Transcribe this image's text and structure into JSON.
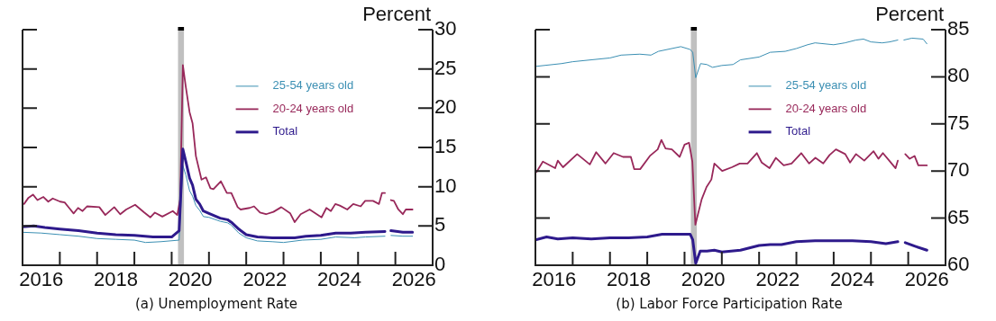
{
  "chart_data": [
    {
      "type": "line",
      "title": "(a) Unemployment Rate",
      "ylabel": "Percent",
      "xlim": [
        2016,
        2027
      ],
      "ylim": [
        0,
        30
      ],
      "yticks": [
        0,
        5,
        10,
        15,
        20,
        25,
        30
      ],
      "xticks": [
        {
          "value": 2016.5,
          "label": "2016"
        },
        {
          "value": 2017,
          "label": null
        },
        {
          "value": 2018,
          "label": null
        },
        {
          "value": 2018.5,
          "label": "2018"
        },
        {
          "value": 2019,
          "label": null
        },
        {
          "value": 2020,
          "label": null
        },
        {
          "value": 2020.5,
          "label": "2020"
        },
        {
          "value": 2021,
          "label": null
        },
        {
          "value": 2022,
          "label": null
        },
        {
          "value": 2022.5,
          "label": "2022"
        },
        {
          "value": 2023,
          "label": null
        },
        {
          "value": 2024,
          "label": null
        },
        {
          "value": 2024.5,
          "label": "2024"
        },
        {
          "value": 2025,
          "label": null
        },
        {
          "value": 2026,
          "label": null
        },
        {
          "value": 2026.5,
          "label": "2026"
        }
      ],
      "bands": [
        {
          "axis": "x",
          "from": 2020.17,
          "to": 2020.33,
          "color": "#c0c0c0"
        }
      ],
      "legend": "top right",
      "grid": false,
      "marker": "none",
      "line_style": "solid",
      "series": [
        {
          "name": "25-54 years old",
          "color": "#3b8fb3",
          "x": [
            2016.0,
            2016.5,
            2017.0,
            2017.5,
            2018.0,
            2018.5,
            2019.0,
            2019.3,
            2019.7,
            2020.2,
            2020.3,
            2020.38,
            2020.48,
            2020.56,
            2020.65,
            2020.75,
            2020.85,
            2021.0,
            2021.3,
            2021.5,
            2021.6,
            2021.8,
            2022.0,
            2022.3,
            2022.7,
            2023.0,
            2023.5,
            2024.0,
            2024.4,
            2024.9,
            2025.2,
            2025.72,
            2025.8,
            2025.88,
            2026.2,
            2026.46
          ],
          "values": [
            4.2,
            4.1,
            3.9,
            3.7,
            3.4,
            3.3,
            3.2,
            2.9,
            3.0,
            3.2,
            12.7,
            11.5,
            9.5,
            8.8,
            7.6,
            7.0,
            6.2,
            6.1,
            5.6,
            5.4,
            5.1,
            4.1,
            3.5,
            3.1,
            3.0,
            2.9,
            3.2,
            3.3,
            3.6,
            3.5,
            3.6,
            3.7,
            null,
            3.8,
            3.7,
            3.7
          ]
        },
        {
          "name": "20-24 years old",
          "color": "#98285a",
          "x": [
            2016.04,
            2016.16,
            2016.28,
            2016.4,
            2016.56,
            2016.69,
            2016.81,
            2017.01,
            2017.13,
            2017.25,
            2017.37,
            2017.49,
            2017.61,
            2017.73,
            2018.06,
            2018.22,
            2018.46,
            2018.62,
            2018.78,
            2019.02,
            2019.27,
            2019.43,
            2019.55,
            2019.75,
            2020.03,
            2020.15,
            2020.23,
            2020.3,
            2020.38,
            2020.48,
            2020.56,
            2020.65,
            2020.8,
            2020.92,
            2021.04,
            2021.12,
            2021.32,
            2021.48,
            2021.6,
            2021.77,
            2021.85,
            2022.09,
            2022.21,
            2022.37,
            2022.53,
            2022.73,
            2022.94,
            2023.18,
            2023.3,
            2023.46,
            2023.7,
            2024.02,
            2024.15,
            2024.27,
            2024.39,
            2024.51,
            2024.71,
            2024.87,
            2025.07,
            2025.19,
            2025.4,
            2025.56,
            2025.64,
            2025.72,
            2025.8,
            2025.88,
            2025.96,
            2026.08,
            2026.2,
            2026.28,
            2026.46
          ],
          "values": [
            7.8,
            8.6,
            9.0,
            8.3,
            8.7,
            8.1,
            8.5,
            8.1,
            8.0,
            7.3,
            6.6,
            7.3,
            6.9,
            7.5,
            7.4,
            6.4,
            7.4,
            6.5,
            7.1,
            7.7,
            6.7,
            6.1,
            6.7,
            6.2,
            6.9,
            6.4,
            8.4,
            25.5,
            22.7,
            19.5,
            18.1,
            13.9,
            10.9,
            11.2,
            9.8,
            9.7,
            10.7,
            9.2,
            9.2,
            7.4,
            7.1,
            7.3,
            7.5,
            6.7,
            6.5,
            6.8,
            7.4,
            6.6,
            5.5,
            6.5,
            7.1,
            6.1,
            7.3,
            6.9,
            7.8,
            7.6,
            7.1,
            7.8,
            7.5,
            8.2,
            8.2,
            7.8,
            9.2,
            9.2,
            null,
            8.3,
            8.2,
            7.1,
            6.5,
            7.1,
            7.1
          ]
        },
        {
          "name": "Total",
          "color": "#2e1a8c",
          "x": [
            2016.0,
            2016.3,
            2016.6,
            2017.0,
            2017.5,
            2018.0,
            2018.5,
            2019.0,
            2019.5,
            2020.0,
            2020.2,
            2020.3,
            2020.38,
            2020.48,
            2020.56,
            2020.65,
            2020.75,
            2020.85,
            2021.0,
            2021.3,
            2021.5,
            2021.62,
            2021.8,
            2022.0,
            2022.3,
            2022.7,
            2023.0,
            2023.3,
            2023.6,
            2024.0,
            2024.4,
            2024.8,
            2025.2,
            2025.72,
            2025.8,
            2025.88,
            2026.2,
            2026.46
          ],
          "values": [
            4.9,
            5.0,
            4.8,
            4.6,
            4.4,
            4.1,
            3.9,
            3.8,
            3.6,
            3.6,
            4.4,
            14.8,
            13.2,
            11.1,
            10.2,
            8.4,
            7.8,
            6.9,
            6.6,
            6.0,
            5.8,
            5.4,
            4.6,
            3.9,
            3.6,
            3.5,
            3.5,
            3.5,
            3.7,
            3.8,
            4.1,
            4.1,
            4.2,
            4.3,
            null,
            4.4,
            4.2,
            4.2
          ]
        }
      ]
    },
    {
      "type": "line",
      "title": "(b) Labor Force Participation Rate",
      "ylabel": "Percent",
      "xlim": [
        2016,
        2027
      ],
      "ylim": [
        60,
        85
      ],
      "yticks": [
        60,
        65,
        70,
        75,
        80,
        85
      ],
      "xticks": [
        {
          "value": 2016.5,
          "label": "2016"
        },
        {
          "value": 2017,
          "label": null
        },
        {
          "value": 2018,
          "label": null
        },
        {
          "value": 2018.5,
          "label": "2018"
        },
        {
          "value": 2019,
          "label": null
        },
        {
          "value": 2020,
          "label": null
        },
        {
          "value": 2020.5,
          "label": "2020"
        },
        {
          "value": 2021,
          "label": null
        },
        {
          "value": 2022,
          "label": null
        },
        {
          "value": 2022.5,
          "label": "2022"
        },
        {
          "value": 2023,
          "label": null
        },
        {
          "value": 2024,
          "label": null
        },
        {
          "value": 2024.5,
          "label": "2024"
        },
        {
          "value": 2025,
          "label": null
        },
        {
          "value": 2026,
          "label": null
        },
        {
          "value": 2026.5,
          "label": "2026"
        }
      ],
      "bands": [
        {
          "axis": "x",
          "from": 2020.17,
          "to": 2020.33,
          "color": "#c0c0c0"
        }
      ],
      "legend": "top right",
      "grid": false,
      "marker": "none",
      "line_style": "solid",
      "series": [
        {
          "name": "25-54 years old",
          "color": "#3b8fb3",
          "x": [
            2016.0,
            2016.7,
            2017.0,
            2017.5,
            2018.0,
            2018.3,
            2018.8,
            2019.1,
            2019.3,
            2019.9,
            2020.15,
            2020.22,
            2020.3,
            2020.43,
            2020.6,
            2020.75,
            2021.0,
            2021.3,
            2021.5,
            2022.0,
            2022.3,
            2022.7,
            2023.0,
            2023.3,
            2023.5,
            2024.0,
            2024.3,
            2024.6,
            2024.8,
            2025.0,
            2025.3,
            2025.5,
            2025.72,
            2025.8,
            2025.88,
            2026.1,
            2026.4,
            2026.5
          ],
          "values": [
            81.1,
            81.4,
            81.6,
            81.8,
            82.0,
            82.3,
            82.4,
            82.3,
            82.7,
            83.2,
            82.9,
            82.6,
            79.9,
            81.4,
            81.3,
            81.0,
            81.2,
            81.3,
            81.8,
            82.1,
            82.6,
            82.7,
            83.0,
            83.4,
            83.6,
            83.4,
            83.6,
            83.9,
            84.0,
            83.7,
            83.6,
            83.7,
            83.9,
            null,
            83.9,
            84.1,
            84.0,
            83.5
          ]
        },
        {
          "name": "20-24 years old",
          "color": "#98285a",
          "x": [
            2016.03,
            2016.2,
            2016.53,
            2016.6,
            2016.74,
            2017.12,
            2017.46,
            2017.63,
            2017.88,
            2018.1,
            2018.35,
            2018.56,
            2018.65,
            2018.81,
            2019.07,
            2019.28,
            2019.38,
            2019.49,
            2019.66,
            2019.87,
            2020.0,
            2020.12,
            2020.21,
            2020.29,
            2020.46,
            2020.59,
            2020.72,
            2020.8,
            2021.01,
            2021.27,
            2021.48,
            2021.69,
            2021.94,
            2022.07,
            2022.28,
            2022.45,
            2022.66,
            2022.87,
            2023.13,
            2023.34,
            2023.51,
            2023.72,
            2023.89,
            2024.06,
            2024.31,
            2024.44,
            2024.6,
            2024.82,
            2025.07,
            2025.2,
            2025.32,
            2025.49,
            2025.66,
            2025.72,
            2025.8,
            2025.92,
            2026.04,
            2026.17,
            2026.27,
            2026.5
          ],
          "values": [
            69.9,
            71.0,
            70.3,
            71.1,
            70.4,
            71.8,
            70.7,
            72.0,
            70.8,
            71.9,
            71.5,
            71.5,
            70.2,
            70.2,
            71.6,
            72.3,
            73.3,
            72.4,
            72.3,
            71.5,
            72.8,
            73.0,
            71.0,
            64.3,
            67.0,
            68.3,
            69.1,
            70.8,
            70.0,
            70.4,
            70.8,
            70.8,
            71.9,
            70.9,
            70.3,
            71.4,
            70.6,
            70.8,
            71.9,
            70.8,
            71.4,
            70.8,
            71.7,
            72.3,
            71.8,
            70.9,
            71.8,
            71.1,
            72.1,
            71.3,
            71.9,
            71.1,
            70.3,
            71.1,
            null,
            71.8,
            71.3,
            71.6,
            70.6,
            70.6
          ]
        },
        {
          "name": "Total",
          "color": "#2e1a8c",
          "x": [
            2016.0,
            2016.3,
            2016.6,
            2017.0,
            2017.5,
            2018.0,
            2018.5,
            2019.0,
            2019.4,
            2020.15,
            2020.22,
            2020.3,
            2020.42,
            2020.6,
            2020.8,
            2021.0,
            2021.5,
            2022.0,
            2022.3,
            2022.6,
            2023.0,
            2023.5,
            2024.0,
            2024.5,
            2025.0,
            2025.4,
            2025.72,
            2025.8,
            2025.92,
            2026.2,
            2026.5
          ],
          "values": [
            62.7,
            63.0,
            62.8,
            62.9,
            62.8,
            62.9,
            62.9,
            63.0,
            63.3,
            63.3,
            62.7,
            60.2,
            61.5,
            61.5,
            61.6,
            61.4,
            61.6,
            62.1,
            62.2,
            62.2,
            62.5,
            62.6,
            62.6,
            62.6,
            62.5,
            62.3,
            62.5,
            null,
            62.4,
            62.0,
            61.6
          ]
        }
      ]
    }
  ]
}
